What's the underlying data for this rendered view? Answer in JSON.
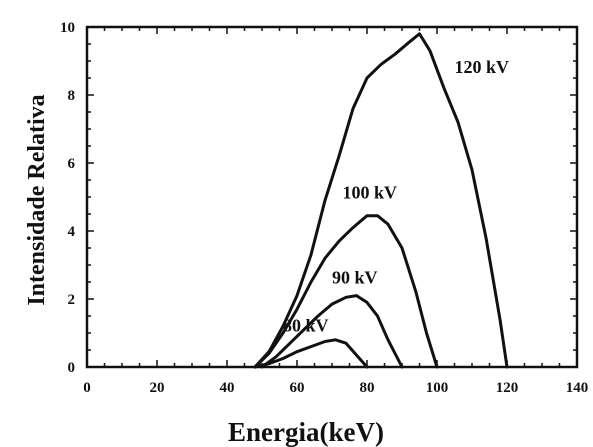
{
  "chart_data": {
    "type": "line",
    "xlabel": "Energia(keV)",
    "ylabel": "Intensidade Relativa",
    "xlim": [
      0,
      140
    ],
    "ylim": [
      0,
      10
    ],
    "xticks": [
      0,
      20,
      40,
      60,
      80,
      100,
      120,
      140
    ],
    "yticks": [
      0,
      2,
      4,
      6,
      8,
      10
    ],
    "grid": false,
    "legend": "none",
    "series": [
      {
        "name": "80 kV",
        "x": [
          48,
          52,
          56,
          60,
          64,
          68,
          71,
          74,
          77,
          80
        ],
        "y": [
          0,
          0.1,
          0.25,
          0.45,
          0.6,
          0.75,
          0.8,
          0.7,
          0.35,
          0
        ]
      },
      {
        "name": "90 kV",
        "x": [
          50,
          54,
          58,
          62,
          66,
          70,
          74,
          77,
          80,
          83,
          86,
          90
        ],
        "y": [
          0,
          0.3,
          0.7,
          1.1,
          1.5,
          1.85,
          2.05,
          2.1,
          1.9,
          1.5,
          0.8,
          0
        ]
      },
      {
        "name": "100 kV",
        "x": [
          48,
          52,
          56,
          60,
          64,
          68,
          72,
          76,
          80,
          83,
          86,
          90,
          94,
          97,
          100
        ],
        "y": [
          0,
          0.4,
          1.0,
          1.7,
          2.5,
          3.2,
          3.7,
          4.1,
          4.45,
          4.45,
          4.2,
          3.5,
          2.2,
          1.0,
          0
        ]
      },
      {
        "name": "120 kV",
        "x": [
          48,
          52,
          56,
          60,
          64,
          68,
          72,
          76,
          80,
          84,
          88,
          92,
          95,
          98,
          102,
          106,
          110,
          114,
          118,
          120
        ],
        "y": [
          0,
          0.45,
          1.2,
          2.1,
          3.3,
          4.9,
          6.2,
          7.6,
          8.5,
          8.9,
          9.2,
          9.55,
          9.8,
          9.3,
          8.2,
          7.2,
          5.8,
          3.8,
          1.4,
          0
        ]
      }
    ]
  }
}
